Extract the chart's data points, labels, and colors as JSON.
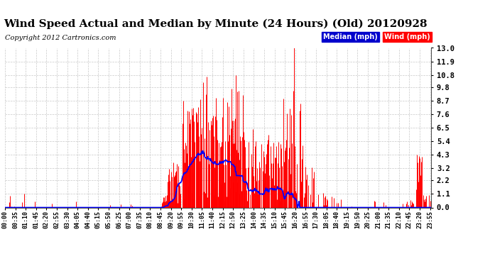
{
  "title": "Wind Speed Actual and Median by Minute (24 Hours) (Old) 20120928",
  "copyright": "Copyright 2012 Cartronics.com",
  "yticks": [
    0.0,
    1.1,
    2.2,
    3.2,
    4.3,
    5.4,
    6.5,
    7.6,
    8.7,
    9.8,
    10.8,
    11.9,
    13.0
  ],
  "ylim": [
    0.0,
    13.0
  ],
  "wind_color": "#ff0000",
  "median_color": "#0000ff",
  "background_color": "#ffffff",
  "grid_color": "#c8c8c8",
  "title_fontsize": 11,
  "copyright_fontsize": 7,
  "legend_labels": [
    "Median (mph)",
    "Wind (mph)"
  ],
  "legend_bg": "#0000cc",
  "legend_wind_color": "#ff0000",
  "tick_step_minutes": 35
}
